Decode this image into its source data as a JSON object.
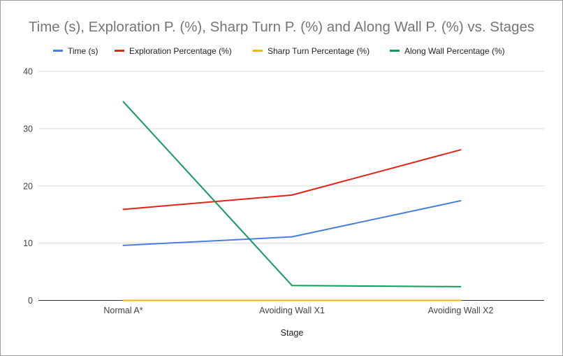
{
  "chart_data": {
    "type": "line",
    "title": "Time (s), Exploration P. (%), Sharp Turn P. (%) and Along Wall P. (%) vs. Stages",
    "xlabel": "Stage",
    "ylabel": "",
    "categories": [
      "Normal A*",
      "Avoiding Wall X1",
      "Avoiding Wall X2"
    ],
    "ylim": [
      0,
      40
    ],
    "yticks": [
      0,
      10,
      20,
      30,
      40
    ],
    "grid": true,
    "legend_position": "top",
    "series": [
      {
        "name": "Time (s)",
        "color": "#4a7fe0",
        "values": [
          9.6,
          11.1,
          17.4
        ]
      },
      {
        "name": "Exploration Percentage (%)",
        "color": "#e2231a",
        "values": [
          15.9,
          18.4,
          26.3
        ]
      },
      {
        "name": "Sharp Turn Percentage (%)",
        "color": "#f4b400",
        "values": [
          0,
          0,
          0
        ]
      },
      {
        "name": "Along Wall Percentage (%)",
        "color": "#0f9d58",
        "values": [
          34.7,
          2.6,
          2.4
        ]
      }
    ]
  }
}
